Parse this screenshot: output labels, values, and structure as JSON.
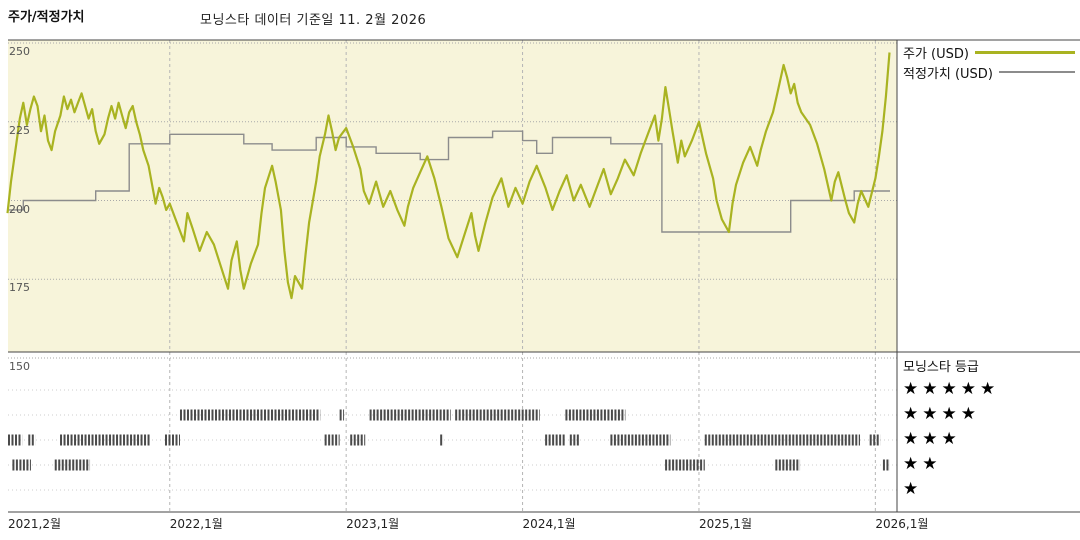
{
  "title": "주가/적정가치",
  "subtitle": "모닝스타 데이터 기준일 11. 2월 2026",
  "legend": {
    "price_label": "주가 (USD)",
    "fair_value_label": "적정가치 (USD)"
  },
  "rating_panel": {
    "title": "모닝스타 등급",
    "star_char": "★",
    "rows": [
      5,
      4,
      3,
      2,
      1
    ]
  },
  "colors": {
    "price": "#a9b321",
    "fair_value": "#8c8c8c",
    "plot_bg": "#f7f4da",
    "band": "#4a4a4a",
    "grid": "#b5b5b5",
    "grid_dots": "#a9a9a9",
    "border": "#444444"
  },
  "chart_data": {
    "type": "line",
    "title": "주가/적정가치",
    "subtitle": "모닝스타 데이터 기준일 11. 2월 2026",
    "x_axis": {
      "range": [
        2021.083,
        2026.083
      ],
      "ticks": [
        {
          "label": "2021,2월",
          "t": 2021.083
        },
        {
          "label": "2022,1월",
          "t": 2022.0
        },
        {
          "label": "2023,1월",
          "t": 2023.0
        },
        {
          "label": "2024,1월",
          "t": 2024.0
        },
        {
          "label": "2025,1월",
          "t": 2025.0
        },
        {
          "label": "2026,1월",
          "t": 2026.0
        }
      ]
    },
    "y_axis": {
      "ticks": [
        250,
        225,
        200,
        175,
        150
      ],
      "range": [
        150,
        250
      ]
    },
    "series": [
      {
        "name": "주가 (USD)",
        "style": "line",
        "points": [
          [
            2021.08,
            196
          ],
          [
            2021.1,
            206
          ],
          [
            2021.13,
            218
          ],
          [
            2021.15,
            226
          ],
          [
            2021.17,
            231
          ],
          [
            2021.19,
            224
          ],
          [
            2021.21,
            229
          ],
          [
            2021.23,
            233
          ],
          [
            2021.25,
            230
          ],
          [
            2021.27,
            222
          ],
          [
            2021.29,
            227
          ],
          [
            2021.31,
            219
          ],
          [
            2021.33,
            216
          ],
          [
            2021.35,
            222
          ],
          [
            2021.38,
            227
          ],
          [
            2021.4,
            233
          ],
          [
            2021.42,
            229
          ],
          [
            2021.44,
            232
          ],
          [
            2021.46,
            228
          ],
          [
            2021.48,
            231
          ],
          [
            2021.5,
            234
          ],
          [
            2021.52,
            230
          ],
          [
            2021.54,
            226
          ],
          [
            2021.56,
            229
          ],
          [
            2021.58,
            222
          ],
          [
            2021.6,
            218
          ],
          [
            2021.63,
            221
          ],
          [
            2021.65,
            226
          ],
          [
            2021.67,
            230
          ],
          [
            2021.69,
            226
          ],
          [
            2021.71,
            231
          ],
          [
            2021.73,
            227
          ],
          [
            2021.75,
            223
          ],
          [
            2021.77,
            228
          ],
          [
            2021.79,
            230
          ],
          [
            2021.81,
            225
          ],
          [
            2021.83,
            221
          ],
          [
            2021.85,
            216
          ],
          [
            2021.88,
            211
          ],
          [
            2021.9,
            205
          ],
          [
            2021.92,
            199
          ],
          [
            2021.94,
            204
          ],
          [
            2021.96,
            201
          ],
          [
            2021.98,
            197
          ],
          [
            2022.0,
            199
          ],
          [
            2022.04,
            193
          ],
          [
            2022.08,
            187
          ],
          [
            2022.1,
            196
          ],
          [
            2022.13,
            191
          ],
          [
            2022.17,
            184
          ],
          [
            2022.21,
            190
          ],
          [
            2022.25,
            186
          ],
          [
            2022.29,
            179
          ],
          [
            2022.33,
            172
          ],
          [
            2022.35,
            181
          ],
          [
            2022.38,
            187
          ],
          [
            2022.4,
            178
          ],
          [
            2022.42,
            172
          ],
          [
            2022.46,
            180
          ],
          [
            2022.5,
            186
          ],
          [
            2022.52,
            196
          ],
          [
            2022.54,
            204
          ],
          [
            2022.58,
            211
          ],
          [
            2022.6,
            206
          ],
          [
            2022.63,
            197
          ],
          [
            2022.65,
            184
          ],
          [
            2022.67,
            174
          ],
          [
            2022.69,
            169
          ],
          [
            2022.71,
            176
          ],
          [
            2022.75,
            172
          ],
          [
            2022.77,
            183
          ],
          [
            2022.79,
            193
          ],
          [
            2022.83,
            206
          ],
          [
            2022.85,
            214
          ],
          [
            2022.88,
            221
          ],
          [
            2022.9,
            227
          ],
          [
            2022.92,
            222
          ],
          [
            2022.94,
            216
          ],
          [
            2022.96,
            220
          ],
          [
            2023.0,
            223
          ],
          [
            2023.04,
            217
          ],
          [
            2023.08,
            210
          ],
          [
            2023.1,
            203
          ],
          [
            2023.13,
            199
          ],
          [
            2023.17,
            206
          ],
          [
            2023.21,
            198
          ],
          [
            2023.25,
            203
          ],
          [
            2023.29,
            197
          ],
          [
            2023.33,
            192
          ],
          [
            2023.35,
            198
          ],
          [
            2023.38,
            204
          ],
          [
            2023.42,
            209
          ],
          [
            2023.46,
            214
          ],
          [
            2023.5,
            207
          ],
          [
            2023.54,
            198
          ],
          [
            2023.58,
            188
          ],
          [
            2023.63,
            182
          ],
          [
            2023.67,
            189
          ],
          [
            2023.71,
            196
          ],
          [
            2023.73,
            189
          ],
          [
            2023.75,
            184
          ],
          [
            2023.79,
            193
          ],
          [
            2023.83,
            201
          ],
          [
            2023.88,
            207
          ],
          [
            2023.92,
            198
          ],
          [
            2023.96,
            204
          ],
          [
            2024.0,
            199
          ],
          [
            2024.04,
            206
          ],
          [
            2024.08,
            211
          ],
          [
            2024.13,
            204
          ],
          [
            2024.17,
            197
          ],
          [
            2024.21,
            203
          ],
          [
            2024.25,
            208
          ],
          [
            2024.29,
            200
          ],
          [
            2024.33,
            205
          ],
          [
            2024.38,
            198
          ],
          [
            2024.42,
            204
          ],
          [
            2024.46,
            210
          ],
          [
            2024.5,
            202
          ],
          [
            2024.54,
            207
          ],
          [
            2024.58,
            213
          ],
          [
            2024.63,
            208
          ],
          [
            2024.67,
            215
          ],
          [
            2024.71,
            221
          ],
          [
            2024.75,
            227
          ],
          [
            2024.77,
            219
          ],
          [
            2024.79,
            226
          ],
          [
            2024.81,
            236
          ],
          [
            2024.83,
            229
          ],
          [
            2024.85,
            222
          ],
          [
            2024.88,
            212
          ],
          [
            2024.9,
            219
          ],
          [
            2024.92,
            214
          ],
          [
            2024.96,
            219
          ],
          [
            2025.0,
            225
          ],
          [
            2025.04,
            215
          ],
          [
            2025.08,
            207
          ],
          [
            2025.1,
            200
          ],
          [
            2025.13,
            194
          ],
          [
            2025.17,
            190
          ],
          [
            2025.19,
            199
          ],
          [
            2025.21,
            205
          ],
          [
            2025.25,
            212
          ],
          [
            2025.29,
            217
          ],
          [
            2025.33,
            211
          ],
          [
            2025.35,
            216
          ],
          [
            2025.38,
            222
          ],
          [
            2025.42,
            228
          ],
          [
            2025.44,
            233
          ],
          [
            2025.46,
            238
          ],
          [
            2025.48,
            243
          ],
          [
            2025.5,
            239
          ],
          [
            2025.52,
            234
          ],
          [
            2025.54,
            237
          ],
          [
            2025.56,
            231
          ],
          [
            2025.58,
            228
          ],
          [
            2025.63,
            224
          ],
          [
            2025.67,
            218
          ],
          [
            2025.71,
            210
          ],
          [
            2025.75,
            200
          ],
          [
            2025.77,
            206
          ],
          [
            2025.79,
            209
          ],
          [
            2025.83,
            200
          ],
          [
            2025.85,
            196
          ],
          [
            2025.88,
            193
          ],
          [
            2025.9,
            199
          ],
          [
            2025.92,
            203
          ],
          [
            2025.96,
            198
          ],
          [
            2026.0,
            207
          ],
          [
            2026.02,
            214
          ],
          [
            2026.04,
            222
          ],
          [
            2026.06,
            233
          ],
          [
            2026.08,
            247
          ]
        ]
      },
      {
        "name": "적정가치 (USD)",
        "style": "step",
        "points": [
          [
            2021.08,
            197
          ],
          [
            2021.17,
            200
          ],
          [
            2021.58,
            203
          ],
          [
            2021.77,
            218
          ],
          [
            2022.0,
            221
          ],
          [
            2022.42,
            218
          ],
          [
            2022.58,
            216
          ],
          [
            2022.83,
            220
          ],
          [
            2023.0,
            217
          ],
          [
            2023.17,
            215
          ],
          [
            2023.42,
            213
          ],
          [
            2023.58,
            220
          ],
          [
            2023.83,
            222
          ],
          [
            2024.0,
            219
          ],
          [
            2024.08,
            215
          ],
          [
            2024.17,
            220
          ],
          [
            2024.5,
            218
          ],
          [
            2024.79,
            190
          ],
          [
            2025.52,
            200
          ],
          [
            2025.88,
            203
          ],
          [
            2026.08,
            203
          ]
        ]
      }
    ],
    "rating_timeline": {
      "levels": [
        {
          "stars": 5,
          "segments": []
        },
        {
          "stars": 4,
          "segments": [
            [
              0.195,
              0.354
            ],
            [
              0.376,
              0.381
            ],
            [
              0.41,
              0.502
            ],
            [
              0.507,
              0.603
            ],
            [
              0.632,
              0.7
            ]
          ]
        },
        {
          "stars": 3,
          "segments": [
            [
              0.0,
              0.016
            ],
            [
              0.023,
              0.031
            ],
            [
              0.059,
              0.162
            ],
            [
              0.178,
              0.195
            ],
            [
              0.359,
              0.376
            ],
            [
              0.388,
              0.405
            ],
            [
              0.49,
              0.494
            ],
            [
              0.609,
              0.632
            ],
            [
              0.637,
              0.648
            ],
            [
              0.683,
              0.751
            ],
            [
              0.79,
              0.966
            ],
            [
              0.977,
              0.989
            ]
          ]
        },
        {
          "stars": 2,
          "segments": [
            [
              0.005,
              0.026
            ],
            [
              0.053,
              0.093
            ],
            [
              0.745,
              0.79
            ],
            [
              0.87,
              0.898
            ],
            [
              0.992,
              1.0
            ]
          ]
        },
        {
          "stars": 1,
          "segments": []
        }
      ]
    }
  }
}
